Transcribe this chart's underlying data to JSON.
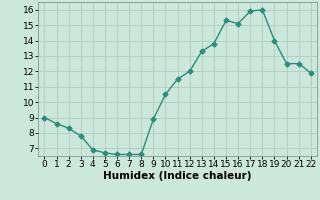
{
  "x": [
    0,
    1,
    2,
    3,
    4,
    5,
    6,
    7,
    8,
    9,
    10,
    11,
    12,
    13,
    14,
    15,
    16,
    17,
    18,
    19,
    20,
    21,
    22
  ],
  "y": [
    9.0,
    8.6,
    8.3,
    7.8,
    6.9,
    6.7,
    6.6,
    6.6,
    6.6,
    8.9,
    10.5,
    11.5,
    12.0,
    13.3,
    13.8,
    15.3,
    15.1,
    15.9,
    16.0,
    14.0,
    12.5,
    12.5,
    11.9
  ],
  "line_color": "#2e8b7a",
  "marker": "D",
  "marker_size": 2.5,
  "bg_color": "#cce8dc",
  "grid_color": "#b0ccc0",
  "xlabel": "Humidex (Indice chaleur)",
  "xlim": [
    -0.5,
    22.5
  ],
  "ylim": [
    6.5,
    16.5
  ],
  "yticks": [
    7,
    8,
    9,
    10,
    11,
    12,
    13,
    14,
    15,
    16
  ],
  "xticks": [
    0,
    1,
    2,
    3,
    4,
    5,
    6,
    7,
    8,
    9,
    10,
    11,
    12,
    13,
    14,
    15,
    16,
    17,
    18,
    19,
    20,
    21,
    22
  ],
  "xlabel_fontsize": 7.5,
  "tick_fontsize": 6.5
}
